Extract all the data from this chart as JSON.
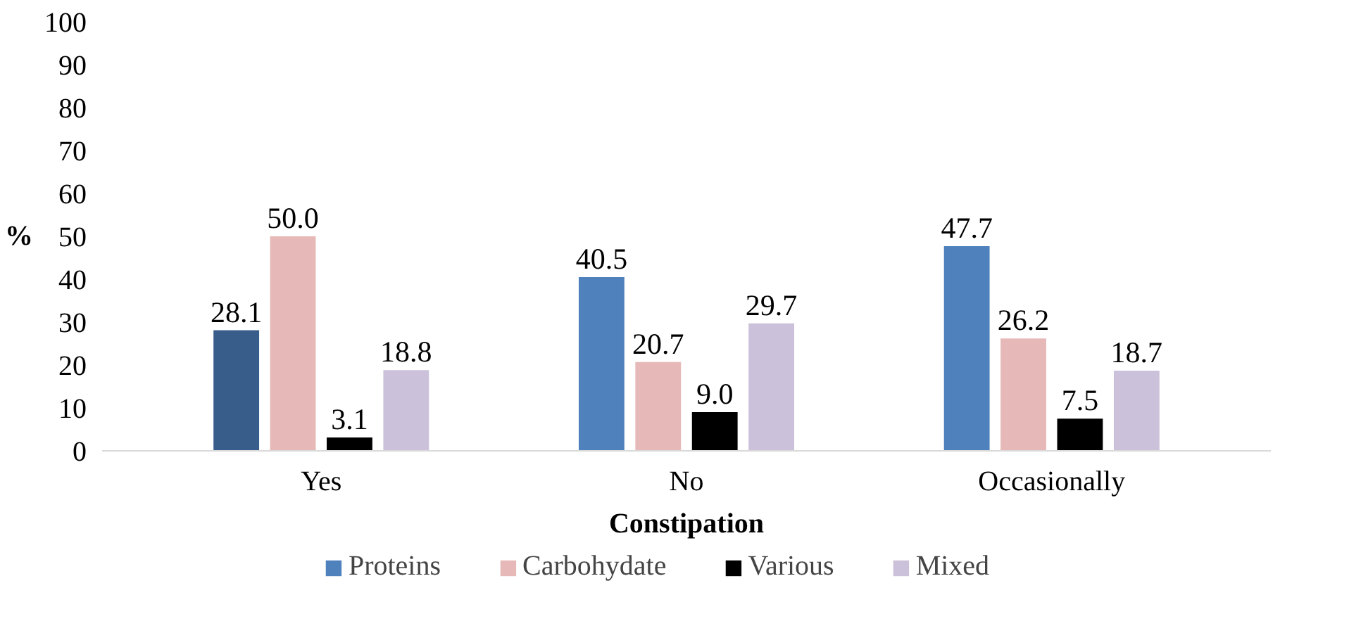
{
  "chart_data": {
    "type": "bar",
    "xlabel": "Constipation",
    "ylabel": "%",
    "categories": [
      "Yes",
      "No",
      "Occasionally"
    ],
    "series": [
      {
        "name": "Proteins",
        "color": "#4f81bd",
        "colors": [
          "#385d8a",
          "#4f81bd",
          "#4f81bd"
        ],
        "values": [
          28.1,
          40.5,
          47.7
        ]
      },
      {
        "name": "Carbohydate",
        "color": "#e6b9b8",
        "values": [
          50.0,
          20.7,
          26.2
        ]
      },
      {
        "name": "Various",
        "color": "#000000",
        "values": [
          3.1,
          9.0,
          7.5
        ]
      },
      {
        "name": "Mixed",
        "color": "#ccc1da",
        "values": [
          18.8,
          29.7,
          18.7
        ]
      }
    ],
    "value_labels": [
      [
        "28.1",
        "40.5",
        "47.7"
      ],
      [
        "50.0",
        "20.7",
        "26.2"
      ],
      [
        "3.1",
        "9.0",
        "7.5"
      ],
      [
        "18.8",
        "29.7",
        "18.7"
      ]
    ],
    "ylim": [
      0,
      100
    ],
    "yticks": [
      0,
      10,
      20,
      30,
      40,
      50,
      60,
      70,
      80,
      90,
      100
    ],
    "grid": false,
    "legend": "bottom"
  }
}
